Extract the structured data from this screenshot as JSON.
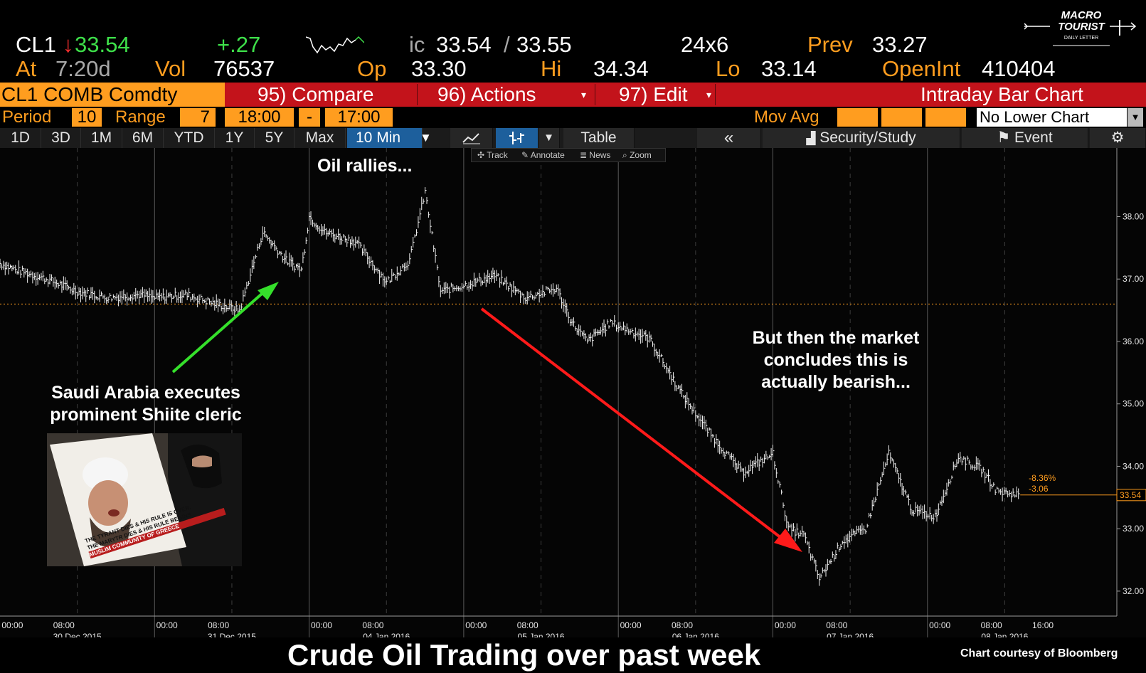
{
  "quote": {
    "ticker": "CL1",
    "last": "33.54",
    "change": "+.27",
    "bidask_prefix": "ic",
    "bid": "33.54",
    "ask": "33.55",
    "size": "24x6",
    "prev_label": "Prev",
    "prev": "33.27",
    "at_label": "At",
    "at_time": "7:20d",
    "vol_label": "Vol",
    "vol": "76537",
    "op_label": "Op",
    "op": "33.30",
    "hi_label": "Hi",
    "hi": "34.34",
    "lo_label": "Lo",
    "lo": "33.14",
    "oi_label": "OpenInt",
    "oi": "410404"
  },
  "logo": {
    "line1": "MACRO",
    "line2": "TOURIST",
    "line3": "DAILY LETTER"
  },
  "toolbar": {
    "security": "CL1 COMB Comdty",
    "compare": "95) Compare",
    "actions": "96) Actions",
    "edit": "97) Edit",
    "chart_name": "Intraday Bar Chart"
  },
  "period": {
    "period_label": "Period",
    "period_value": "10",
    "range_label": "Range",
    "range_value": "7",
    "start": "18:00",
    "dash": "-",
    "end": "17:00",
    "movavg_label": "Mov Avg",
    "lower_chart": "No Lower Chart"
  },
  "tabs": {
    "ranges": [
      "1D",
      "3D",
      "1M",
      "6M",
      "YTD",
      "1Y",
      "5Y",
      "Max"
    ],
    "interval": "10 Min",
    "table": "Table",
    "collapse": "«",
    "security_study": "Security/Study",
    "event": "Event"
  },
  "tools": {
    "track": "Track",
    "annotate": "Annotate",
    "news": "News",
    "zoom": "Zoom"
  },
  "annotations": {
    "rally": "Oil rallies...",
    "saudi_line1": "Saudi Arabia executes",
    "saudi_line2": "prominent Shiite cleric",
    "bear_line1": "But then the market",
    "bear_line2": "concludes this is",
    "bear_line3": "actually bearish...",
    "poster_line1": "THE TYRANT DIES & HIS RULE IS OVER,",
    "poster_line2": "THE MARYTR DIES & HIS RULE BEGINS",
    "poster_line3": "MUSLIM COMMUNITY OF GREECE"
  },
  "footer": {
    "title": "Crude Oil Trading over past week",
    "credit": "Chart courtesy of Bloomberg"
  },
  "colors": {
    "accent_orange": "#ff9d1f",
    "toolbar_red": "#c3131b",
    "up_green": "#3ee04a",
    "down_red": "#ff3030",
    "selected_tab": "#1d5f9c"
  },
  "chart_data": {
    "type": "bar",
    "title": "",
    "xlabel": "",
    "ylabel": "",
    "ylim": [
      31.6,
      39.1
    ],
    "yticks": [
      32.0,
      33.0,
      34.0,
      35.0,
      36.0,
      37.0,
      38.0
    ],
    "ytick_labels": [
      "32.00",
      "33.00",
      "34.00",
      "35.00",
      "36.00",
      "37.00",
      "38.00"
    ],
    "last_price": 33.54,
    "last_label": "33.54",
    "prev_close": 36.6,
    "change_pct": "-8.36%",
    "change_abs": "-3.06",
    "days": [
      "30 Dec 2015",
      "31 Dec 2015",
      "04 Jan 2016",
      "05 Jan 2016",
      "06 Jan 2016",
      "07 Jan 2016",
      "08 Jan 2016"
    ],
    "time_ticks": [
      "00:00",
      "08:00"
    ],
    "extra_time_tick": "16:00",
    "series": [
      {
        "x": [
          0,
          0.1,
          0.3,
          0.5,
          0.7,
          0.9,
          1.0,
          1.2,
          1.4,
          1.55,
          1.7,
          1.85,
          1.95,
          2.0,
          2.1,
          2.3,
          2.5,
          2.65,
          2.75,
          2.85,
          3.0,
          3.2,
          3.4,
          3.6,
          3.7,
          3.8,
          3.95,
          4.0,
          4.2,
          4.4,
          4.6,
          4.8,
          5.0,
          5.1,
          5.2,
          5.3,
          5.45,
          5.6,
          5.75,
          5.9,
          6.05,
          6.2,
          6.35,
          6.45,
          6.6
        ],
        "values": [
          37.25,
          37.15,
          37.0,
          36.8,
          36.7,
          36.75,
          36.7,
          36.75,
          36.6,
          36.5,
          37.75,
          37.3,
          37.15,
          38.0,
          37.75,
          37.6,
          36.95,
          37.3,
          38.4,
          36.8,
          36.9,
          37.05,
          36.7,
          36.85,
          36.3,
          36.0,
          36.3,
          36.25,
          36.05,
          35.2,
          34.5,
          33.9,
          34.2,
          33.0,
          32.9,
          32.2,
          32.8,
          33.0,
          34.2,
          33.3,
          33.2,
          34.15,
          33.95,
          33.6,
          33.54
        ]
      }
    ]
  }
}
